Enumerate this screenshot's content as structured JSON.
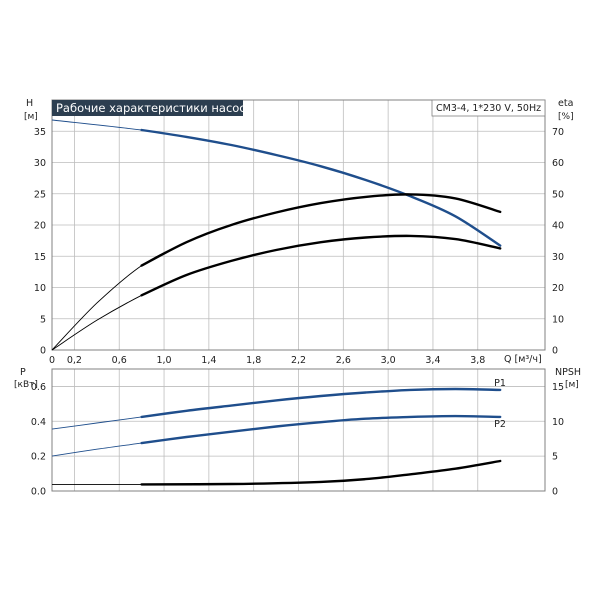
{
  "chart_data": [
    {
      "type": "line",
      "title": "Рабочие характеристики насоса",
      "model_label": "CM3-4, 1*230 V, 50Hz",
      "y_left_label": "H",
      "y_left_unit": "[м]",
      "y_right_label": "eta",
      "y_right_unit": "[%]",
      "x_label": "Q [м³/ч]",
      "xlim": [
        0,
        4.4
      ],
      "ylim_left": [
        0,
        40
      ],
      "ylim_right": [
        0,
        80
      ],
      "x_ticks": [
        "0",
        "0,2",
        "0,6",
        "1,0",
        "1,4",
        "1,8",
        "2,2",
        "2,6",
        "3,0",
        "3,4",
        "3,8"
      ],
      "y_left_ticks": [
        "0",
        "5",
        "10",
        "15",
        "20",
        "25",
        "30",
        "35"
      ],
      "y_right_ticks": [
        "0",
        "10",
        "20",
        "30",
        "40",
        "50",
        "60",
        "70"
      ],
      "grid": true,
      "series": [
        {
          "axis": "left",
          "color": "#1f4e8c",
          "x": [
            0,
            0.8,
            1.2,
            1.6,
            2.0,
            2.4,
            2.8,
            3.2,
            3.6,
            4.0
          ],
          "y": [
            36.8,
            35.2,
            34.1,
            32.8,
            31.2,
            29.4,
            27.2,
            24.6,
            21.4,
            16.7
          ]
        },
        {
          "axis": "right",
          "color": "#000000",
          "x": [
            0,
            0.4,
            0.8,
            1.2,
            1.6,
            2.0,
            2.4,
            2.8,
            3.2,
            3.6,
            4.0
          ],
          "y": [
            0,
            15,
            27,
            34.5,
            40,
            44,
            47,
            49,
            49.8,
            48.5,
            44.2
          ]
        },
        {
          "axis": "right",
          "color": "#000000",
          "x": [
            0,
            0.4,
            0.8,
            1.2,
            1.6,
            2.0,
            2.4,
            2.8,
            3.2,
            3.6,
            4.0
          ],
          "y": [
            0,
            9.5,
            17.5,
            24,
            28.5,
            32,
            34.5,
            36,
            36.5,
            35.5,
            32.5
          ]
        }
      ]
    },
    {
      "type": "line",
      "y_left_label": "P",
      "y_left_unit": "[кВт]",
      "y_right_label": "NPSH",
      "y_right_unit": "[м]",
      "xlim": [
        0,
        4.4
      ],
      "ylim_left": [
        0,
        0.7
      ],
      "ylim_right": [
        0,
        17.5
      ],
      "y_left_ticks": [
        "0.0",
        "0.2",
        "0.4",
        "0.6"
      ],
      "y_right_ticks": [
        "0",
        "5",
        "10",
        "15"
      ],
      "grid": true,
      "series": [
        {
          "name": "P1",
          "axis": "left",
          "color": "#1f4e8c",
          "x": [
            0,
            0.4,
            0.8,
            1.2,
            1.6,
            2.0,
            2.4,
            2.8,
            3.2,
            3.6,
            4.0
          ],
          "y": [
            0.355,
            0.39,
            0.425,
            0.46,
            0.49,
            0.52,
            0.545,
            0.565,
            0.58,
            0.585,
            0.58
          ]
        },
        {
          "name": "P2",
          "axis": "left",
          "color": "#1f4e8c",
          "x": [
            0,
            0.4,
            0.8,
            1.2,
            1.6,
            2.0,
            2.4,
            2.8,
            3.2,
            3.6,
            4.0
          ],
          "y": [
            0.2,
            0.24,
            0.275,
            0.31,
            0.34,
            0.37,
            0.395,
            0.415,
            0.425,
            0.43,
            0.425
          ]
        },
        {
          "axis": "right",
          "color": "#000000",
          "x": [
            0,
            0.8,
            1.6,
            2.4,
            2.8,
            3.2,
            3.6,
            4.0
          ],
          "y": [
            0.95,
            0.95,
            1.0,
            1.3,
            1.7,
            2.4,
            3.2,
            4.3
          ]
        }
      ]
    }
  ]
}
